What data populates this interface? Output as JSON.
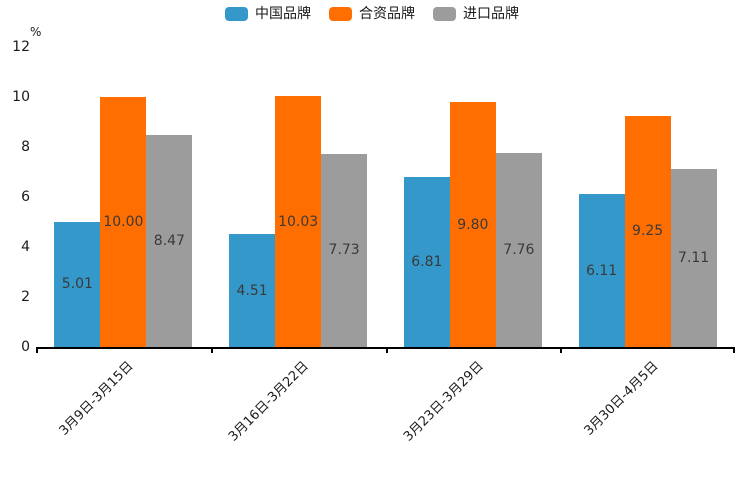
{
  "chart_data": {
    "type": "bar",
    "title": "",
    "unit_label": "%",
    "xlabel": "",
    "ylabel": "%",
    "categories": [
      "3月9日-3月15日",
      "3月16日-3月22日",
      "3月23日-3月29日",
      "3月30日-4月5日"
    ],
    "series": [
      {
        "name": "中国品牌",
        "color": "#3498cb",
        "values": [
          5.01,
          4.51,
          6.81,
          6.11
        ],
        "labels": [
          "5.01",
          "4.51",
          "6.81",
          "6.11"
        ]
      },
      {
        "name": "合资品牌",
        "color": "#ff6e00",
        "values": [
          10.0,
          10.03,
          9.8,
          9.25
        ],
        "labels": [
          "10.00",
          "10.03",
          "9.80",
          "9.25"
        ]
      },
      {
        "name": "进口品牌",
        "color": "#9c9c9c",
        "values": [
          8.47,
          7.73,
          7.76,
          7.11
        ],
        "labels": [
          "8.47",
          "7.73",
          "7.76",
          "7.11"
        ]
      }
    ],
    "ylim": [
      0,
      12
    ],
    "yticks": [
      "0",
      "2",
      "4",
      "6",
      "8",
      "10",
      "12"
    ],
    "grid": false,
    "legend_position": "top",
    "value_label_position": "center-of-bar"
  }
}
